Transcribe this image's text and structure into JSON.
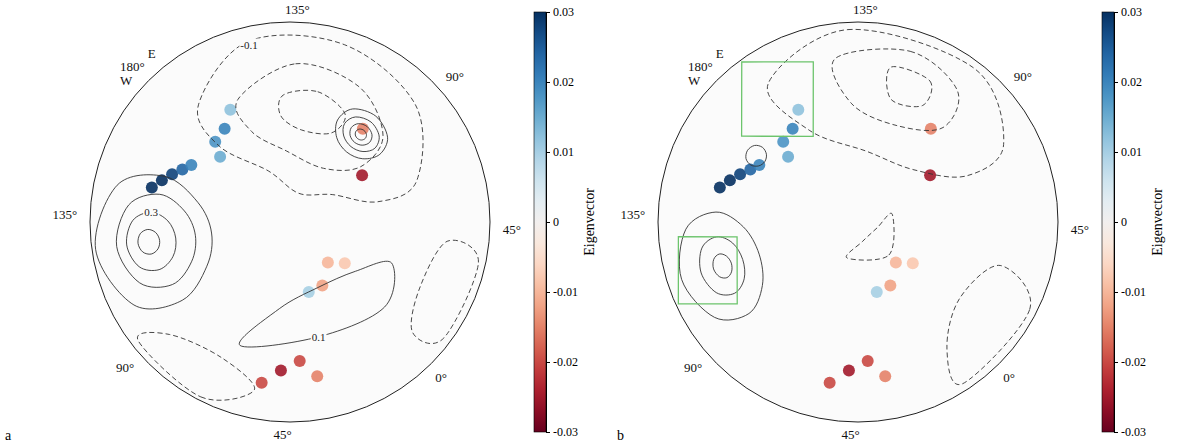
{
  "chart_data": [
    {
      "type": "map",
      "panel": "a",
      "lon_ticks": [
        {
          "value": 135,
          "label": "135°"
        },
        {
          "value": 90,
          "label": "90°"
        },
        {
          "value": 45,
          "label": "45°"
        },
        {
          "value": 0,
          "label": "0°"
        },
        {
          "value": -45,
          "label": "45°"
        },
        {
          "value": -90,
          "label": "90°"
        },
        {
          "value": -135,
          "label": "135°"
        },
        {
          "value": 180,
          "label": "180°"
        }
      ],
      "dateline_labels": {
        "lon": 180,
        "east": "E",
        "west": "W"
      },
      "contours": [
        {
          "level": 0.1,
          "points": [
            [
              -125,
              59
            ],
            [
              -105,
              53.5
            ],
            [
              -97,
              40
            ],
            [
              -105,
              26.5
            ],
            [
              -125,
              21
            ],
            [
              -145,
              26.5
            ],
            [
              -153,
              40
            ],
            [
              -145,
              53.5
            ]
          ]
        },
        {
          "level": 0.2,
          "points": [
            [
              -125,
              53
            ],
            [
              -111,
              49.2
            ],
            [
              -105,
              40
            ],
            [
              -111,
              30.8
            ],
            [
              -125,
              27
            ],
            [
              -139,
              30.8
            ],
            [
              -145,
              40
            ],
            [
              -139,
              49.2
            ]
          ]
        },
        {
          "level": 0.3,
          "points": [
            [
              -125,
              46
            ],
            [
              -116.5,
              43.7
            ],
            [
              -113,
              38
            ],
            [
              -116.5,
              32.3
            ],
            [
              -125,
              30
            ],
            [
              -133.5,
              32.3
            ],
            [
              -137,
              38
            ],
            [
              -133.5,
              43.7
            ]
          ]
        },
        {
          "level": 0.4,
          "points": [
            [
              -125,
              40.5
            ],
            [
              -121.5,
              39.5
            ],
            [
              -120,
              37
            ],
            [
              -121.5,
              34.5
            ],
            [
              -125,
              33.5
            ],
            [
              -128.5,
              34.5
            ],
            [
              -130,
              37
            ],
            [
              -128.5,
              39.5
            ]
          ]
        },
        {
          "level": 0.1,
          "points": [
            [
              98,
              55
            ],
            [
              108,
              52.7
            ],
            [
              112,
              47
            ],
            [
              108,
              41.3
            ],
            [
              98,
              39
            ],
            [
              88,
              41.3
            ],
            [
              84,
              47
            ],
            [
              88,
              52.7
            ]
          ]
        },
        {
          "level": 0.2,
          "points": [
            [
              98,
              52.5
            ],
            [
              105,
              50.9
            ],
            [
              108,
              47
            ],
            [
              105,
              43.1
            ],
            [
              98,
              41.5
            ],
            [
              91,
              43.1
            ],
            [
              88,
              47
            ],
            [
              91,
              50.9
            ]
          ]
        },
        {
          "level": 0.3,
          "points": [
            [
              98,
              50.5
            ],
            [
              102.2,
              49.5
            ],
            [
              104,
              47
            ],
            [
              102.2,
              44.5
            ],
            [
              98,
              43.5
            ],
            [
              93.8,
              44.5
            ],
            [
              92,
              47
            ],
            [
              93.8,
              49.5
            ]
          ]
        },
        {
          "level": 0.4,
          "points": [
            [
              98,
              48.8
            ],
            [
              100.1,
              48.3
            ],
            [
              101,
              47
            ],
            [
              100.1,
              45.7
            ],
            [
              98,
              45.2
            ],
            [
              95.9,
              45.7
            ],
            [
              95,
              47
            ],
            [
              95.9,
              48.3
            ]
          ]
        },
        {
          "level": -0.1,
          "points": [
            [
              175,
              35
            ],
            [
              150,
              24
            ],
            [
              120,
              24
            ],
            [
              90,
              28
            ],
            [
              65,
              40
            ],
            [
              60,
              55
            ],
            [
              80,
              70
            ],
            [
              120,
              78
            ],
            [
              160,
              68
            ],
            [
              180,
              50
            ]
          ]
        },
        {
          "level": -0.2,
          "points": [
            [
              160,
              40
            ],
            [
              135,
              32
            ],
            [
              110,
              34
            ],
            [
              90,
              42
            ],
            [
              85,
              55
            ],
            [
              105,
              65
            ],
            [
              140,
              62
            ],
            [
              160,
              52
            ]
          ]
        },
        {
          "level": -0.3,
          "points": [
            [
              140,
              42
            ],
            [
              125,
              40
            ],
            [
              110,
              44
            ],
            [
              112,
              52
            ],
            [
              130,
              54
            ],
            [
              142,
              49
            ]
          ]
        },
        {
          "level": -0.1,
          "points": [
            [
              10,
              22
            ],
            [
              35,
              22
            ],
            [
              40,
              32
            ],
            [
              20,
              36
            ],
            [
              5,
              30
            ]
          ]
        },
        {
          "level": 0.1,
          "points": [
            [
              -65,
              40
            ],
            [
              -29,
              45
            ],
            [
              5,
              42
            ],
            [
              25,
              48
            ],
            [
              10,
              58
            ],
            [
              -20,
              62
            ],
            [
              -50,
              56
            ]
          ]
        },
        {
          "level": -0.1,
          "points": [
            [
              -95,
              22
            ],
            [
              -70,
              21
            ],
            [
              -55,
              28
            ],
            [
              -70,
              34
            ],
            [
              -90,
              30
            ]
          ]
        }
      ],
      "contour_labels": [
        {
          "value": -0.1,
          "lon": 150,
          "lat": 25
        },
        {
          "value": 0.3,
          "lon": -137,
          "lat": 38
        },
        {
          "value": 0.1,
          "lon": -29,
          "lat": 45
        }
      ],
      "patches": [
        {
          "lon": -147,
          "lat": 37,
          "value": 0.03
        },
        {
          "lon": -151,
          "lat": 39.5,
          "value": 0.03
        },
        {
          "lon": -155,
          "lat": 42,
          "value": 0.028
        },
        {
          "lon": -159,
          "lat": 44.5,
          "value": 0.024
        },
        {
          "lon": -163,
          "lat": 46.5,
          "value": 0.02
        },
        {
          "lon": -176,
          "lat": 53,
          "value": 0.015
        },
        {
          "lon": 180,
          "lat": 48,
          "value": 0.018
        },
        {
          "lon": 172,
          "lat": 46.5,
          "value": 0.02
        },
        {
          "lon": 165,
          "lat": 42,
          "value": 0.012
        },
        {
          "lon": 80,
          "lat": 56.5,
          "value": -0.025
        },
        {
          "lon": 99,
          "lat": 45,
          "value": -0.015
        },
        {
          "lon": -39,
          "lat": 38,
          "value": -0.02
        },
        {
          "lon": -46.5,
          "lat": 35,
          "value": -0.025
        },
        {
          "lon": -33,
          "lat": 32.5,
          "value": -0.015
        },
        {
          "lon": -53,
          "lat": 30.5,
          "value": -0.02
        },
        {
          "lon": 0,
          "lat": 68,
          "value": -0.01
        },
        {
          "lon": -16,
          "lat": 62,
          "value": -0.012
        },
        {
          "lon": 10,
          "lat": 63,
          "value": -0.008
        },
        {
          "lon": -28,
          "lat": 61.5,
          "value": 0.01
        }
      ],
      "colorbar": {
        "label": "Eigenvector",
        "range": [
          -0.03,
          0.03
        ],
        "ticks": [
          0.03,
          0.02,
          0.01,
          0,
          -0.01,
          -0.02,
          -0.03
        ]
      }
    },
    {
      "type": "map",
      "panel": "b",
      "lon_ticks": [
        {
          "value": 135,
          "label": "135°"
        },
        {
          "value": 90,
          "label": "90°"
        },
        {
          "value": 45,
          "label": "45°"
        },
        {
          "value": 0,
          "label": "0°"
        },
        {
          "value": -45,
          "label": "45°"
        },
        {
          "value": -90,
          "label": "90°"
        },
        {
          "value": -135,
          "label": "135°"
        },
        {
          "value": 180,
          "label": "180°"
        }
      ],
      "dateline_labels": {
        "lon": 180,
        "east": "E",
        "west": "W"
      },
      "contours": [
        {
          "level": 0.1,
          "points": [
            [
              -115,
              50
            ],
            [
              -99.4,
              46.2
            ],
            [
              -93,
              37
            ],
            [
              -99.4,
              27.8
            ],
            [
              -115,
              24
            ],
            [
              -130.6,
              27.8
            ],
            [
              -137,
              37
            ],
            [
              -130.6,
              46.2
            ]
          ]
        },
        {
          "level": 0.2,
          "points": [
            [
              -115,
              44
            ],
            [
              -106.5,
              42
            ],
            [
              -103,
              37
            ],
            [
              -106.5,
              32
            ],
            [
              -115,
              30
            ],
            [
              -123.5,
              32
            ],
            [
              -127,
              37
            ],
            [
              -123.5,
              42
            ]
          ]
        },
        {
          "level": 0.3,
          "points": [
            [
              -115,
              40
            ],
            [
              -111.5,
              39.1
            ],
            [
              -110,
              37
            ],
            [
              -111.5,
              34.9
            ],
            [
              -115,
              34
            ],
            [
              -118.5,
              34.9
            ],
            [
              -120,
              37
            ],
            [
              -118.5,
              39.1
            ]
          ]
        },
        {
          "level": 0.1,
          "points": [
            [
              -166,
              47.5
            ],
            [
              -162.5,
              46.5
            ],
            [
              -161,
              44
            ],
            [
              -162.5,
              41.5
            ],
            [
              -166,
              40.5
            ],
            [
              -169.5,
              41.5
            ],
            [
              -171,
              44
            ],
            [
              -169.5,
              46.5
            ]
          ]
        },
        {
          "level": -0.1,
          "points": [
            [
              170,
              30
            ],
            [
              140,
              22
            ],
            [
              100,
              22
            ],
            [
              75,
              30
            ],
            [
              70,
              45
            ],
            [
              90,
              60
            ],
            [
              130,
              62
            ],
            [
              165,
              50
            ]
          ]
        },
        {
          "level": -0.2,
          "points": [
            [
              145,
              30
            ],
            [
              120,
              26
            ],
            [
              100,
              30
            ],
            [
              95,
              42
            ],
            [
              115,
              50
            ],
            [
              140,
              45
            ]
          ]
        },
        {
          "level": -0.3,
          "points": [
            [
              125,
              32
            ],
            [
              110,
              32
            ],
            [
              108,
              40
            ],
            [
              122,
              42
            ]
          ]
        },
        {
          "level": -0.1,
          "points": [
            [
              -10,
              22
            ],
            [
              20,
              22
            ],
            [
              30,
              35
            ],
            [
              10,
              42
            ],
            [
              -8,
              33
            ]
          ]
        },
        {
          "level": -0.1,
          "points": [
            [
              -60,
              75
            ],
            [
              0,
              72
            ],
            [
              60,
              76
            ],
            [
              30,
              82
            ],
            [
              -30,
              82
            ]
          ]
        }
      ],
      "contour_labels": [],
      "boxes": [
        {
          "corners": [
            [
              173,
              20.6
            ],
            [
              152.6,
              29.6
            ],
            [
              164.6,
              52.6
            ],
            [
              -169.4,
              36.3
            ]
          ]
        },
        {
          "corners": [
            [
              -128.3,
              25.5
            ],
            [
              -126,
              43.8
            ],
            [
              -98.9,
              35.9
            ],
            [
              -108.5,
              20.7
            ]
          ]
        }
      ],
      "patches": [
        {
          "lon": -147,
          "lat": 37,
          "value": 0.03
        },
        {
          "lon": -151,
          "lat": 39.5,
          "value": 0.03
        },
        {
          "lon": -155,
          "lat": 42,
          "value": 0.028
        },
        {
          "lon": -159,
          "lat": 44.5,
          "value": 0.024
        },
        {
          "lon": -163,
          "lat": 46.5,
          "value": 0.02
        },
        {
          "lon": -176,
          "lat": 53,
          "value": 0.015
        },
        {
          "lon": 180,
          "lat": 48,
          "value": 0.018
        },
        {
          "lon": 172,
          "lat": 46.5,
          "value": 0.02
        },
        {
          "lon": 165,
          "lat": 42,
          "value": 0.012
        },
        {
          "lon": 80,
          "lat": 56.5,
          "value": -0.025
        },
        {
          "lon": 99,
          "lat": 45,
          "value": -0.015
        },
        {
          "lon": -39,
          "lat": 38,
          "value": -0.02
        },
        {
          "lon": -46.5,
          "lat": 35,
          "value": -0.025
        },
        {
          "lon": -33,
          "lat": 32.5,
          "value": -0.015
        },
        {
          "lon": -53,
          "lat": 30.5,
          "value": -0.02
        },
        {
          "lon": 0,
          "lat": 68,
          "value": -0.01
        },
        {
          "lon": -16,
          "lat": 62,
          "value": -0.012
        },
        {
          "lon": 10,
          "lat": 63,
          "value": -0.008
        },
        {
          "lon": -28,
          "lat": 61.5,
          "value": 0.01
        }
      ],
      "colorbar": {
        "label": "Eigenvector",
        "range": [
          -0.03,
          0.03
        ],
        "ticks": [
          0.03,
          0.02,
          0.01,
          0,
          -0.01,
          -0.02,
          -0.03
        ]
      }
    }
  ]
}
